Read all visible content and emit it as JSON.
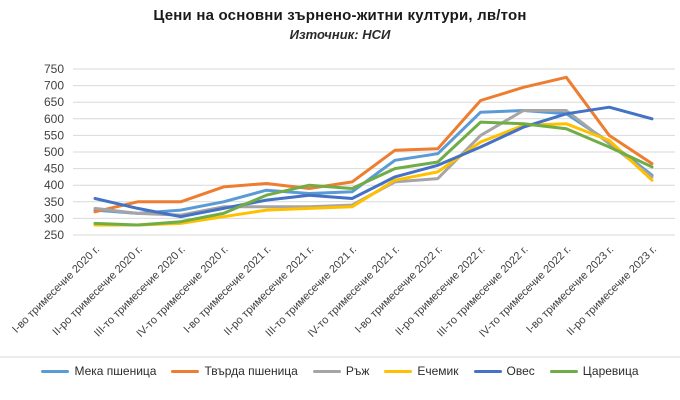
{
  "header": {
    "title": "Цени на основни зърнено-житни култури, лв/тон",
    "subtitle": "Източник: НСИ"
  },
  "chart_data": {
    "type": "line",
    "title": "Цени на основни зърнено-житни култури, лв/тон",
    "subtitle": "Източник: НСИ",
    "ylabel": "",
    "xlabel": "",
    "ylim": [
      250,
      750
    ],
    "ytick_step": 50,
    "grid": "horizontal",
    "legend_position": "bottom",
    "gridline_color": "#d9d9d9",
    "axis_label_color": "#404040",
    "categories": [
      "I-во тримесечие 2020 г.",
      "II-ро тримесечие 2020 г.",
      "III-то тримесечие 2020 г.",
      "IV-то тримесечие 2020 г.",
      "I-во тримесечие 2021 г.",
      "II-ро тримесечие 2021 г.",
      "III-то тримесечие 2021 г.",
      "IV-то тримесечие 2021 г.",
      "I-во тримесечие 2022 г.",
      "II-ро тримесечие 2022 г.",
      "III-то тримесечие 2022 г.",
      "IV-то тримесечие 2022 г.",
      "I-во тримесечие 2023 г.",
      "II-ро тримесечие 2023 г."
    ],
    "series": [
      {
        "id": "soft-wheat",
        "name": "Мека пшеница",
        "color": "#5B9BD5",
        "values": [
          325,
          315,
          325,
          350,
          385,
          375,
          380,
          475,
          495,
          620,
          625,
          615,
          530,
          430
        ]
      },
      {
        "id": "durum-wheat",
        "name": "Твърда пшеница",
        "color": "#ED7D31",
        "values": [
          320,
          350,
          350,
          395,
          405,
          390,
          410,
          505,
          510,
          655,
          695,
          725,
          550,
          465
        ]
      },
      {
        "id": "rye",
        "name": "Ръж",
        "color": "#A5A5A5",
        "values": [
          330,
          315,
          310,
          335,
          335,
          335,
          340,
          410,
          420,
          550,
          625,
          625,
          525,
          425
        ]
      },
      {
        "id": "barley",
        "name": "Ечемик",
        "color": "#FFC000",
        "values": [
          280,
          280,
          285,
          305,
          325,
          330,
          335,
          415,
          440,
          530,
          580,
          585,
          535,
          415
        ]
      },
      {
        "id": "oats",
        "name": "Овес",
        "color": "#4472C4",
        "values": [
          360,
          330,
          305,
          330,
          355,
          370,
          360,
          425,
          460,
          515,
          575,
          615,
          635,
          600
        ]
      },
      {
        "id": "maize",
        "name": "Царевица",
        "color": "#70AD47",
        "values": [
          285,
          280,
          290,
          315,
          370,
          400,
          390,
          450,
          470,
          590,
          585,
          570,
          515,
          455
        ]
      }
    ]
  }
}
